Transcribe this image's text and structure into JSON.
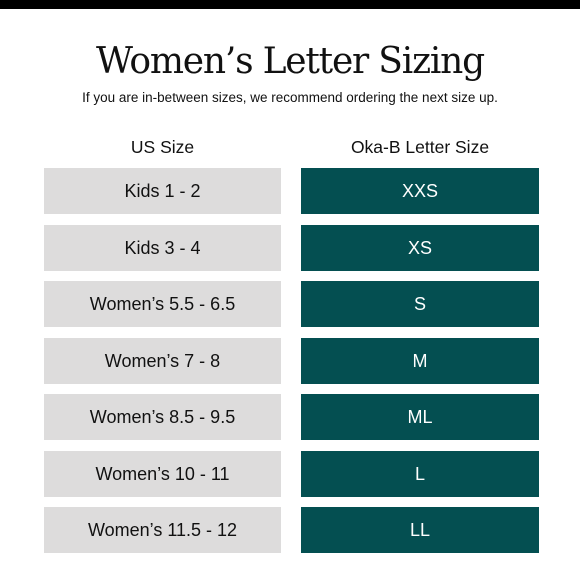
{
  "header": {
    "title": "Women’s Letter Sizing",
    "subtitle": "If you are in-between sizes, we recommend ordering the next size up."
  },
  "table": {
    "columns": [
      "US Size",
      "Oka-B Letter Size"
    ],
    "rows": [
      {
        "us_size": "Kids 1 - 2",
        "letter_size": "XXS"
      },
      {
        "us_size": "Kids 3 - 4",
        "letter_size": "XS"
      },
      {
        "us_size": "Women’s 5.5 - 6.5",
        "letter_size": "S"
      },
      {
        "us_size": "Women’s 7 - 8",
        "letter_size": "M"
      },
      {
        "us_size": "Women’s 8.5 - 9.5",
        "letter_size": "ML"
      },
      {
        "us_size": "Women’s 10 - 11",
        "letter_size": "L"
      },
      {
        "us_size": "Women’s 11.5 - 12",
        "letter_size": "LL"
      }
    ]
  },
  "colors": {
    "us_cell_background": "#dddcdc",
    "letter_cell_background": "#044f51",
    "letter_cell_text": "#ffffff",
    "top_bar": "#000000"
  }
}
